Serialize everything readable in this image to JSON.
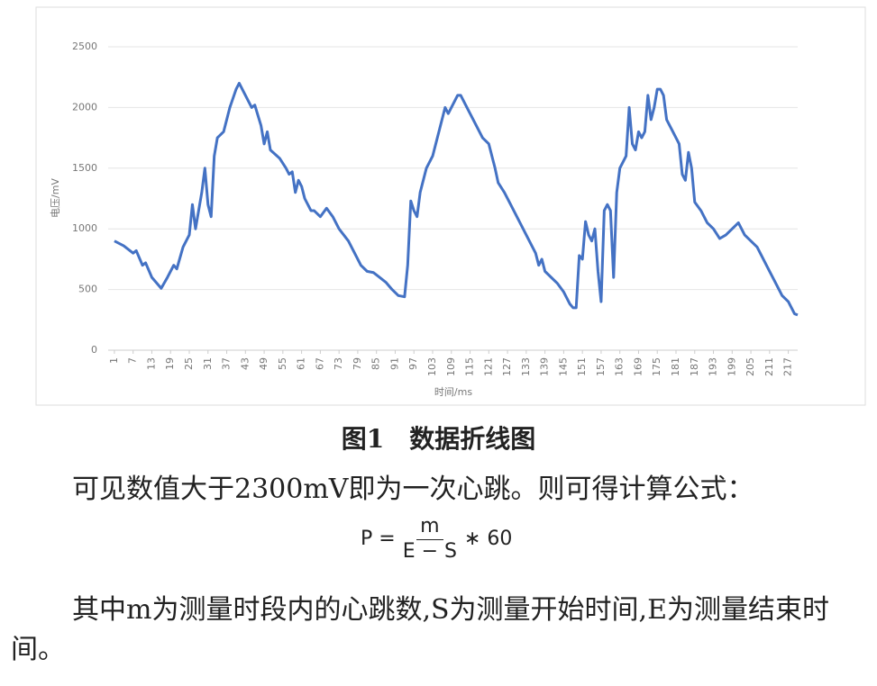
{
  "chart_data": {
    "type": "line",
    "x_label": "时间/ms",
    "y_label": "电压/mV",
    "x": [
      1,
      4,
      7,
      8,
      10,
      11,
      13,
      16,
      18,
      20,
      21,
      23,
      25,
      26,
      27,
      29,
      30,
      31,
      32,
      33,
      34,
      36,
      38,
      40,
      41,
      43,
      45,
      46,
      48,
      49,
      50,
      51,
      54,
      56,
      57,
      58,
      59,
      60,
      61,
      62,
      64,
      65,
      67,
      69,
      71,
      73,
      76,
      78,
      80,
      82,
      84,
      86,
      88,
      90,
      92,
      94,
      95,
      96,
      97,
      98,
      99,
      101,
      103,
      104,
      106,
      107,
      108,
      110,
      111,
      112,
      113,
      115,
      117,
      119,
      121,
      122,
      123,
      124,
      126,
      128,
      130,
      132,
      134,
      136,
      137,
      138,
      139,
      141,
      143,
      145,
      147,
      148,
      149,
      150,
      151,
      152,
      153,
      154,
      155,
      156,
      157,
      158,
      159,
      160,
      161,
      162,
      163,
      165,
      166,
      167,
      168,
      169,
      170,
      171,
      172,
      173,
      174,
      175,
      176,
      177,
      178,
      180,
      182,
      183,
      184,
      185,
      186,
      187,
      189,
      191,
      193,
      195,
      197,
      199,
      201,
      203,
      205,
      207,
      209,
      211,
      213,
      215,
      217,
      219,
      220
    ],
    "series": [
      {
        "color": "#4472c4",
        "values": [
          900,
          860,
          800,
          820,
          700,
          720,
          600,
          510,
          600,
          700,
          670,
          850,
          950,
          1200,
          1000,
          1300,
          1500,
          1200,
          1100,
          1600,
          1750,
          1800,
          2000,
          2150,
          2200,
          2100,
          2000,
          2020,
          1850,
          1700,
          1800,
          1650,
          1580,
          1500,
          1450,
          1470,
          1300,
          1400,
          1350,
          1250,
          1150,
          1150,
          1100,
          1170,
          1100,
          1000,
          900,
          800,
          700,
          650,
          640,
          600,
          560,
          500,
          450,
          440,
          700,
          1230,
          1150,
          1100,
          1300,
          1500,
          1600,
          1700,
          1900,
          2000,
          1950,
          2050,
          2100,
          2100,
          2050,
          1950,
          1850,
          1750,
          1700,
          1600,
          1500,
          1380,
          1300,
          1200,
          1100,
          1000,
          900,
          800,
          700,
          750,
          650,
          600,
          550,
          480,
          380,
          350,
          350,
          780,
          750,
          1060,
          950,
          900,
          1000,
          650,
          400,
          1150,
          1200,
          1150,
          600,
          1300,
          1500,
          1600,
          2000,
          1700,
          1650,
          1800,
          1750,
          1800,
          2100,
          1900,
          2000,
          2150,
          2150,
          2100,
          1900,
          1800,
          1700,
          1450,
          1400,
          1630,
          1500,
          1220,
          1150,
          1050,
          1000,
          920,
          950,
          1000,
          1050,
          950,
          900,
          850,
          750,
          650,
          550,
          450,
          400,
          300,
          290
        ]
      }
    ],
    "xlim": [
      -1,
      220
    ],
    "xticks": [
      1,
      7,
      13,
      19,
      25,
      31,
      37,
      43,
      49,
      55,
      61,
      67,
      73,
      79,
      85,
      91,
      97,
      103,
      109,
      115,
      121,
      127,
      133,
      139,
      145,
      151,
      157,
      163,
      169,
      175,
      181,
      187,
      193,
      199,
      205,
      211,
      217
    ],
    "ylim": [
      0,
      2500
    ],
    "yticks": [
      0,
      500,
      1000,
      1500,
      2000,
      2500
    ],
    "grid": true
  },
  "caption": "图1　数据折线图",
  "paragraph1": "可见数值大于2300mV即为一次心跳。则可得计算公式：",
  "formula": {
    "lhs": "P =",
    "numerator": "m",
    "denominator": "E − S",
    "rhs": "∗ 60"
  },
  "paragraph2": "其中m为测量时段内的心跳数,S为测量开始时间,E为测量结束时间。"
}
